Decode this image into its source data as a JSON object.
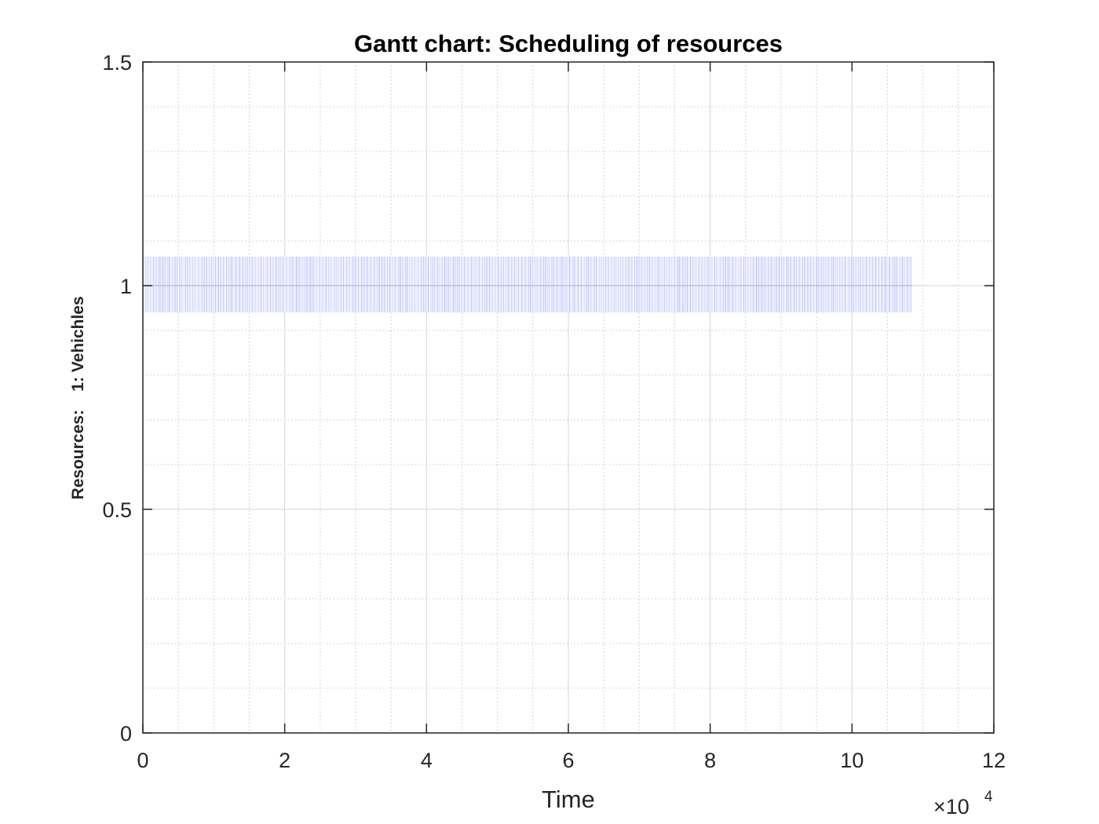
{
  "chart_data": {
    "type": "bar",
    "subtype": "gantt",
    "title": "Gantt chart: Scheduling of resources",
    "xlabel": "Time",
    "ylabel": "Resources:    1: Vehichles",
    "x_exponent_label": "×10",
    "x_exponent_power": "4",
    "xlim": [
      0,
      12
    ],
    "ylim": [
      0,
      1.5
    ],
    "x_ticks": [
      "0",
      "2",
      "4",
      "6",
      "8",
      "10",
      "12"
    ],
    "x_tick_values": [
      0,
      2,
      4,
      6,
      8,
      10,
      12
    ],
    "y_ticks": [
      "0",
      "0.5",
      "1",
      "1.5"
    ],
    "y_tick_values": [
      0,
      0.5,
      1,
      1.5
    ],
    "grid": true,
    "minor_grid": true,
    "series": [
      {
        "resource": 1,
        "start": 0,
        "end": 10.85,
        "y_center": 1,
        "y_low": 0.94,
        "y_high": 1.065
      }
    ],
    "colors": {
      "bar_stripe": "#7b7bf0",
      "bar_fill": "#eef0ff",
      "center_line": "#b8b8d6",
      "major_grid": "#dcdcdc",
      "minor_grid": "#c8c8c8",
      "axis": "#262626"
    }
  }
}
